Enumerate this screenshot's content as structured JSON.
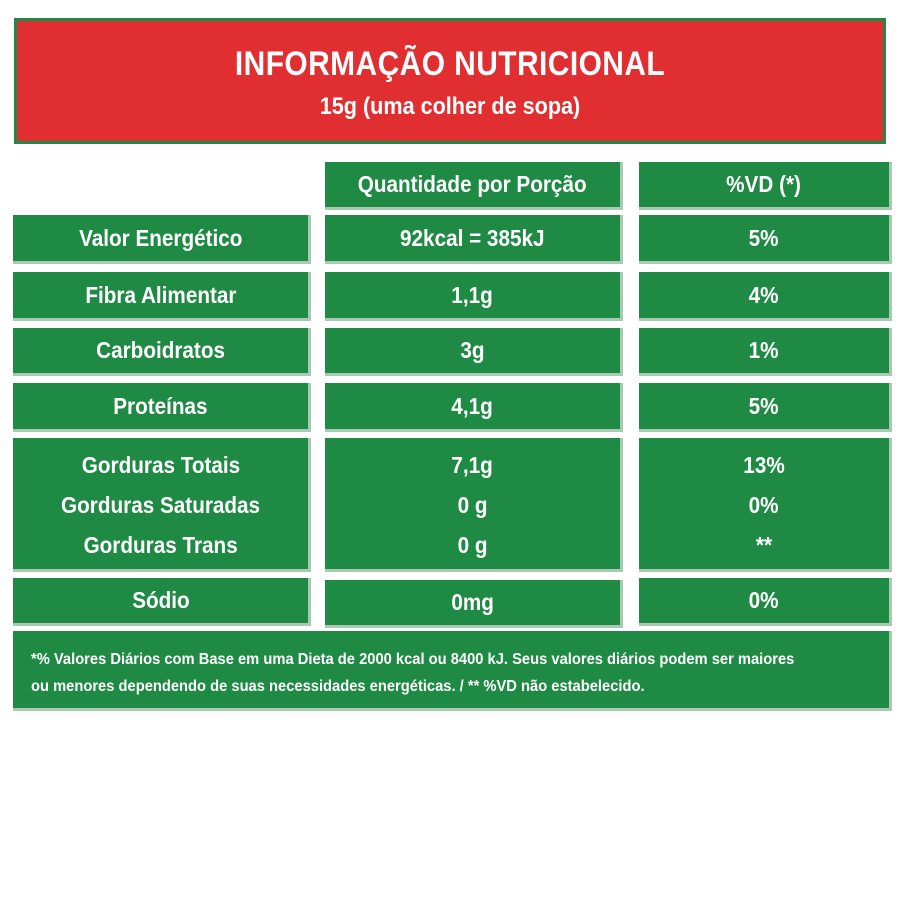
{
  "header": {
    "title": "INFORMAÇÃO NUTRICIONAL",
    "subtitle": "15g (uma colher de sopa)"
  },
  "columns": {
    "quantity": "Quantidade por Porção",
    "dv": "%VD (*)"
  },
  "rows": [
    {
      "name": "Valor Energético",
      "quantity": "92kcal = 385kJ",
      "dv": "5%"
    },
    {
      "name": "Fibra Alimentar",
      "quantity": "1,1g",
      "dv": "4%"
    },
    {
      "name": "Carboidratos",
      "quantity": "3g",
      "dv": "1%"
    },
    {
      "name": "Proteínas",
      "quantity": "4,1g",
      "dv": "5%"
    },
    {
      "name": "Gorduras Totais",
      "quantity": "7,1g",
      "dv": "13%"
    },
    {
      "name": "Gorduras Saturadas",
      "quantity": "0 g",
      "dv": "0%"
    },
    {
      "name": "Gorduras Trans",
      "quantity": "0 g",
      "dv": "**"
    },
    {
      "name": "Sódio",
      "quantity": "0mg",
      "dv": "0%"
    }
  ],
  "footer": {
    "line1": "*% Valores Diários com Base em uma Dieta de 2000 kcal ou 8400 kJ. Seus valores diários podem ser maiores",
    "line2": "ou menores dependendo de suas necessidades energéticas. / ** %VD não estabelecido."
  },
  "colors": {
    "header_red": "#e12e31",
    "table_green": "#1e8a43",
    "text": "#ffffff"
  }
}
